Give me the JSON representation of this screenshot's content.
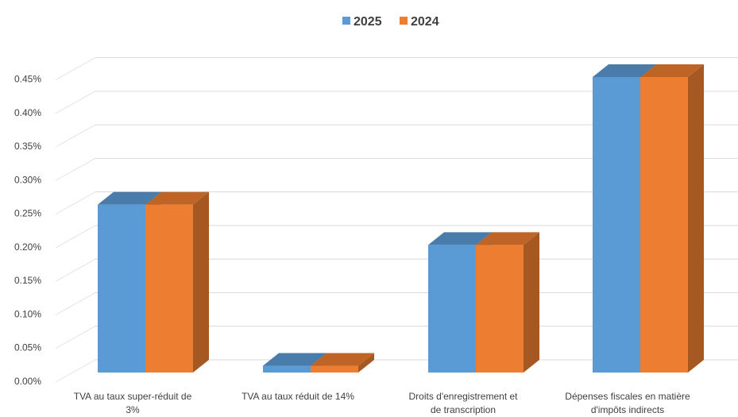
{
  "chart_data": {
    "type": "bar",
    "style": "3d-clustered-column",
    "categories": [
      [
        "TVA au taux super-réduit de",
        "3%"
      ],
      [
        "TVA au taux réduit de 14%"
      ],
      [
        "Droits d'enregistrement et",
        "de transcription"
      ],
      [
        "Dépenses fiscales en matière",
        "d'impôts indirects"
      ]
    ],
    "series": [
      {
        "name": "2025",
        "color": "#5B9BD5",
        "values": [
          0.0025,
          0.0001,
          0.0019,
          0.0044
        ]
      },
      {
        "name": "2024",
        "color": "#ED7D31",
        "values": [
          0.0025,
          0.0001,
          0.0019,
          0.0044
        ]
      }
    ],
    "ylim": [
      0,
      0.0045
    ],
    "yticks": [
      "0.00%",
      "0.05%",
      "0.10%",
      "0.15%",
      "0.20%",
      "0.25%",
      "0.30%",
      "0.35%",
      "0.40%",
      "0.45%"
    ],
    "grid": true,
    "legend_position": "top-center"
  }
}
